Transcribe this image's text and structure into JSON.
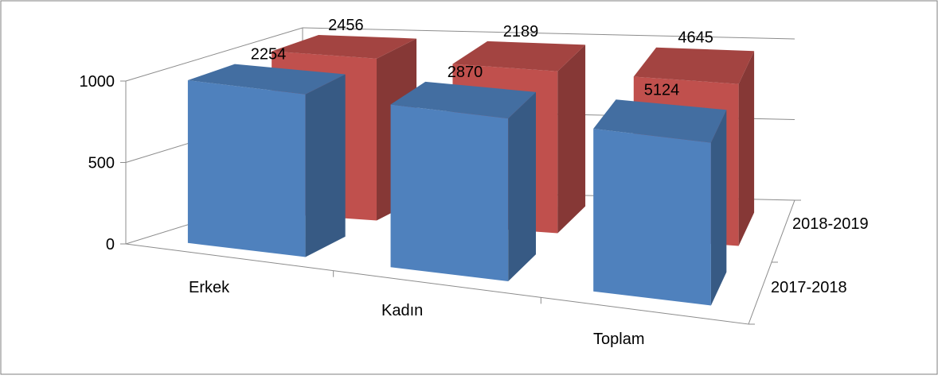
{
  "chart_data": {
    "type": "bar",
    "style": "3d-clustered-depth",
    "title": "",
    "xlabel": "",
    "ylabel": "",
    "categories": [
      "Erkek",
      "Kadın",
      "Toplam"
    ],
    "series": [
      {
        "name": "2017-2018",
        "values": [
          2254,
          2870,
          5124
        ],
        "color": "#4f81bd"
      },
      {
        "name": "2018-2019",
        "values": [
          2456,
          2189,
          4645
        ],
        "color": "#c0504d"
      }
    ],
    "y_ticks": [
      "0",
      "500",
      "1000"
    ],
    "ylim": [
      0,
      1000
    ],
    "grid": true,
    "legend": "none"
  }
}
